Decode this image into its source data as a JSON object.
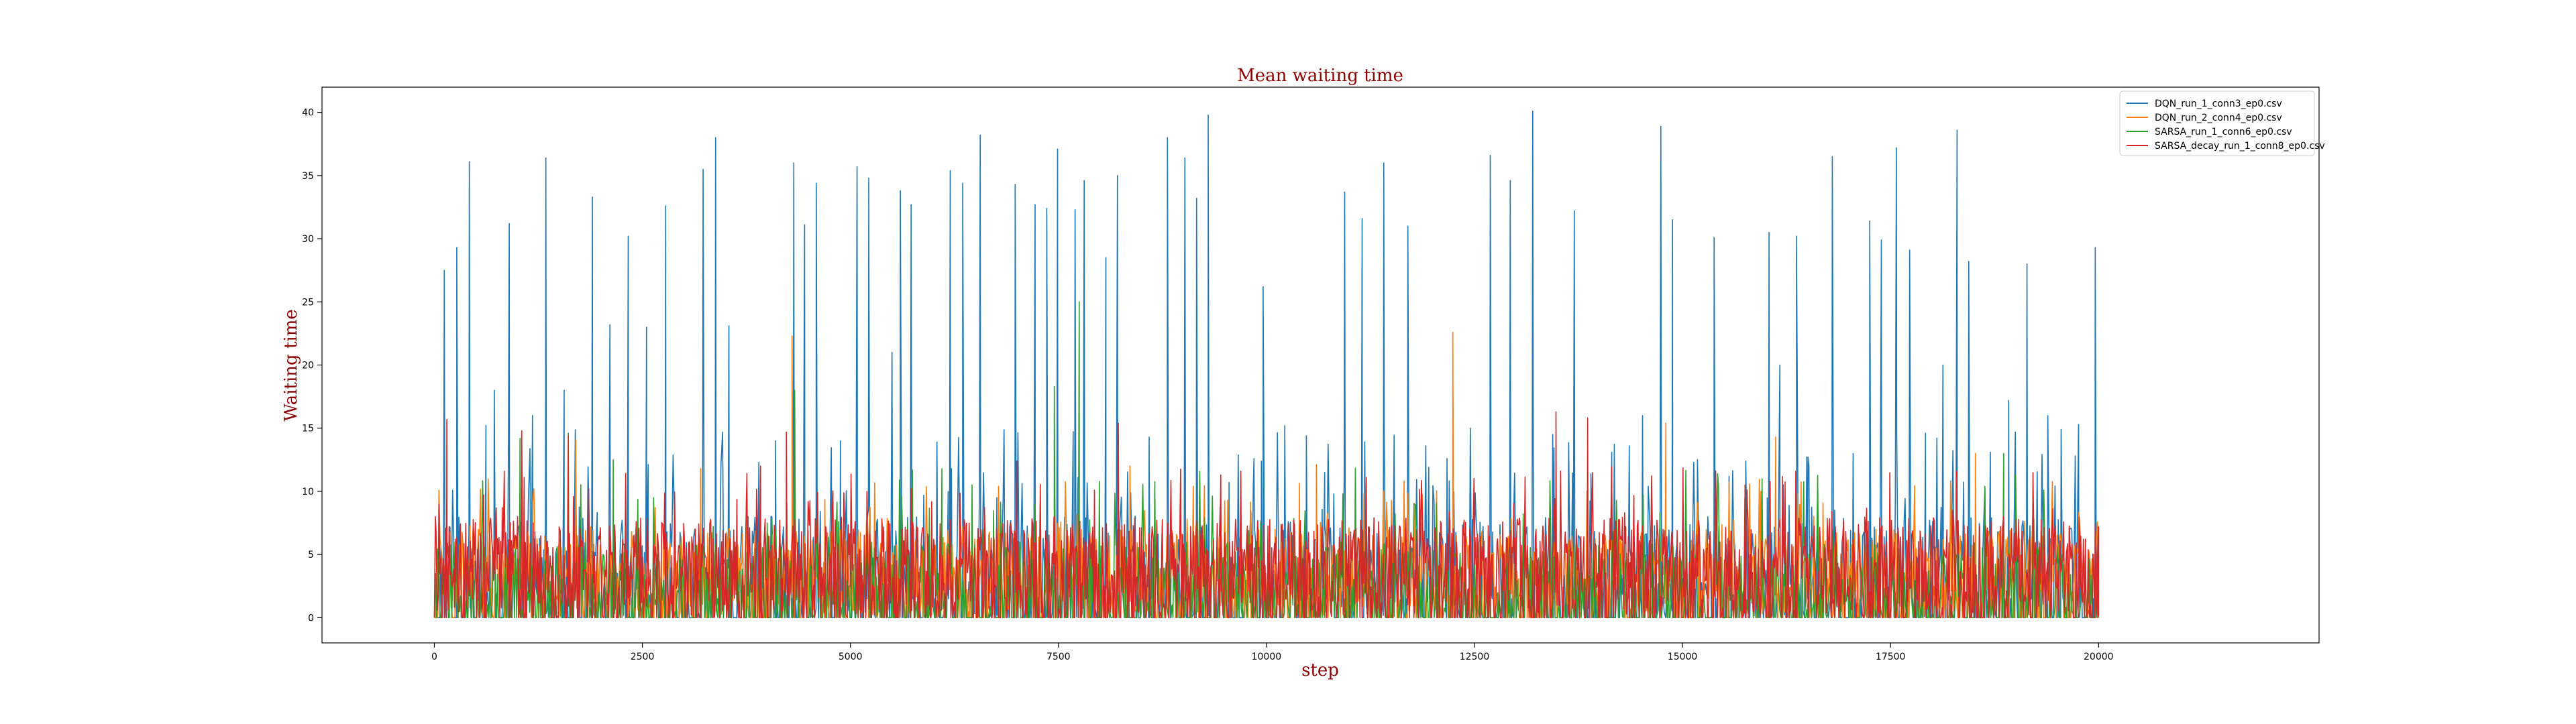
{
  "chart_data": {
    "type": "line",
    "title": "Mean waiting time",
    "xlabel": "step",
    "ylabel": "Waiting time",
    "xlim": [
      -1350,
      22650
    ],
    "ylim": [
      -2,
      42
    ],
    "xticks": [
      0,
      2500,
      5000,
      7500,
      10000,
      12500,
      15000,
      17500,
      20000
    ],
    "yticks": [
      0,
      5,
      10,
      15,
      20,
      25,
      30,
      35,
      40
    ],
    "grid": false,
    "legend_position": "top-right",
    "series": [
      {
        "name": "DQN_run_1_conn3_ep0.csv",
        "color": "#1f77b4",
        "peaks": [
          [
            120,
            27.5
          ],
          [
            270,
            29.3
          ],
          [
            420,
            36.1
          ],
          [
            620,
            15.2
          ],
          [
            720,
            18.0
          ],
          [
            900,
            31.2
          ],
          [
            1180,
            16.0
          ],
          [
            1340,
            36.4
          ],
          [
            1560,
            18.0
          ],
          [
            1900,
            33.3
          ],
          [
            2110,
            23.2
          ],
          [
            2330,
            30.2
          ],
          [
            2550,
            23.0
          ],
          [
            2780,
            32.6
          ],
          [
            3230,
            35.5
          ],
          [
            3380,
            38.0
          ],
          [
            3540,
            23.1
          ],
          [
            3900,
            12.3
          ],
          [
            4100,
            14.0
          ],
          [
            4320,
            36.0
          ],
          [
            4450,
            31.1
          ],
          [
            4590,
            34.4
          ],
          [
            4880,
            14.0
          ],
          [
            5080,
            35.7
          ],
          [
            5220,
            34.8
          ],
          [
            5500,
            21.0
          ],
          [
            5600,
            33.8
          ],
          [
            5730,
            32.7
          ],
          [
            6040,
            13.9
          ],
          [
            6200,
            35.4
          ],
          [
            6350,
            34.4
          ],
          [
            6560,
            38.2
          ],
          [
            6760,
            9.5
          ],
          [
            6980,
            34.3
          ],
          [
            7220,
            32.7
          ],
          [
            7360,
            32.4
          ],
          [
            7490,
            37.1
          ],
          [
            7700,
            32.3
          ],
          [
            7810,
            34.6
          ],
          [
            8070,
            28.5
          ],
          [
            8210,
            35.0
          ],
          [
            8590,
            14.3
          ],
          [
            8810,
            38.0
          ],
          [
            9020,
            36.4
          ],
          [
            9160,
            33.2
          ],
          [
            9300,
            39.8
          ],
          [
            9550,
            10.7
          ],
          [
            9850,
            12.6
          ],
          [
            9960,
            26.2
          ],
          [
            10220,
            15.2
          ],
          [
            10480,
            14.4
          ],
          [
            10700,
            11.5
          ],
          [
            10940,
            33.7
          ],
          [
            11150,
            31.6
          ],
          [
            11410,
            36.0
          ],
          [
            11700,
            31.0
          ],
          [
            11950,
            11.9
          ],
          [
            12170,
            12.6
          ],
          [
            12450,
            15.0
          ],
          [
            12690,
            36.6
          ],
          [
            12930,
            34.6
          ],
          [
            13200,
            40.1
          ],
          [
            13440,
            14.5
          ],
          [
            13700,
            32.2
          ],
          [
            13900,
            11.4
          ],
          [
            14150,
            13.1
          ],
          [
            14360,
            13.6
          ],
          [
            14520,
            16.0
          ],
          [
            14740,
            38.9
          ],
          [
            14880,
            31.5
          ],
          [
            15180,
            12.5
          ],
          [
            15380,
            30.1
          ],
          [
            15560,
            11.2
          ],
          [
            15760,
            12.4
          ],
          [
            16040,
            30.5
          ],
          [
            16170,
            20.0
          ],
          [
            16370,
            30.2
          ],
          [
            16520,
            12.0
          ],
          [
            16800,
            36.5
          ],
          [
            17050,
            13.0
          ],
          [
            17250,
            31.4
          ],
          [
            17390,
            29.9
          ],
          [
            17570,
            37.2
          ],
          [
            17730,
            29.1
          ],
          [
            17920,
            14.6
          ],
          [
            18130,
            20.0
          ],
          [
            18300,
            38.6
          ],
          [
            18440,
            28.2
          ],
          [
            18700,
            13.1
          ],
          [
            18920,
            17.2
          ],
          [
            19140,
            28.0
          ],
          [
            19390,
            16.0
          ],
          [
            19550,
            14.9
          ],
          [
            19760,
            15.3
          ],
          [
            19960,
            29.3
          ]
        ]
      },
      {
        "name": "DQN_run_2_conn4_ep0.csv",
        "color": "#ff7f0e",
        "peaks": [
          [
            4300,
            22.3
          ],
          [
            12240,
            22.6
          ],
          [
            14800,
            15.4
          ],
          [
            16120,
            14.3
          ],
          [
            1700,
            14.1
          ],
          [
            8360,
            12.0
          ],
          [
            18520,
            13.0
          ],
          [
            10600,
            12.1
          ],
          [
            3200,
            11.8
          ],
          [
            6780,
            10.4
          ]
        ]
      },
      {
        "name": "SARSA_run_1_conn6_ep0.csv",
        "color": "#2ca02c",
        "peaks": [
          [
            1030,
            14.2
          ],
          [
            1610,
            14.6
          ],
          [
            4330,
            18.0
          ],
          [
            7450,
            18.3
          ],
          [
            7750,
            25.0
          ],
          [
            18860,
            13.0
          ],
          [
            2150,
            12.5
          ],
          [
            6100,
            11.8
          ]
        ]
      },
      {
        "name": "SARSA_decay_run_1_conn8_ep0.csv",
        "color": "#d62728",
        "peaks": [
          [
            150,
            15.7
          ],
          [
            1050,
            14.8
          ],
          [
            1610,
            14.4
          ],
          [
            4230,
            14.7
          ],
          [
            8220,
            15.4
          ],
          [
            13480,
            16.3
          ],
          [
            13860,
            15.8
          ],
          [
            3920,
            12.0
          ],
          [
            7000,
            12.4
          ],
          [
            11200,
            11.1
          ]
        ]
      }
    ]
  }
}
